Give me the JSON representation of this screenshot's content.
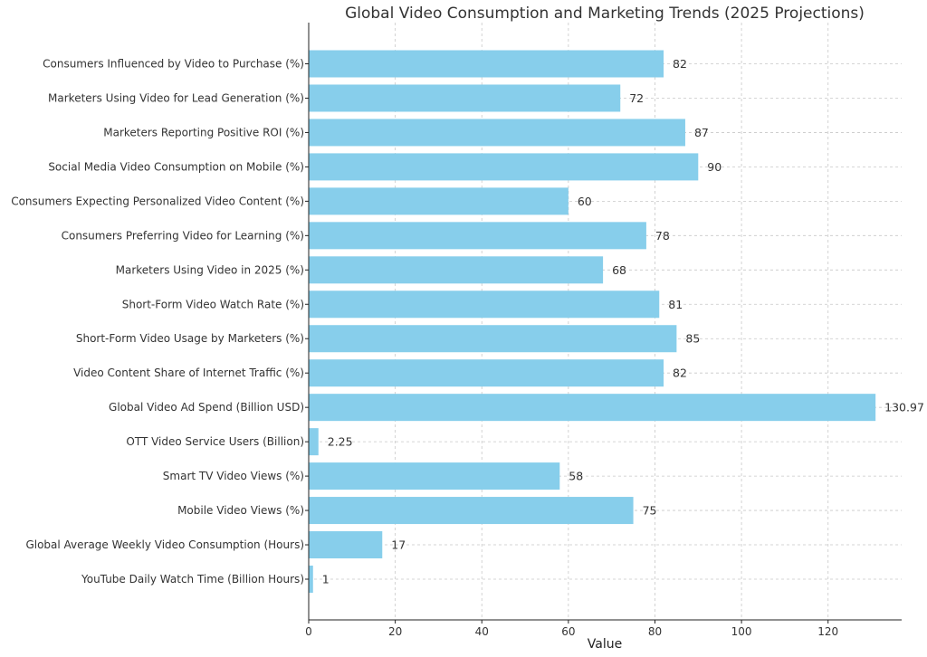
{
  "chart_data": {
    "type": "bar",
    "orientation": "horizontal",
    "title": "Global Video Consumption and Marketing Trends (2025 Projections)",
    "xlabel": "Value",
    "ylabel": "",
    "xlim": [
      0,
      137
    ],
    "xticks": [
      0,
      20,
      40,
      60,
      80,
      100,
      120
    ],
    "grid": true,
    "bar_color": "#87ceeb",
    "categories": [
      "YouTube Daily Watch Time (Billion Hours)",
      "Global Average Weekly Video Consumption (Hours)",
      "Mobile Video Views (%)",
      "Smart TV Video Views (%)",
      "OTT Video Service Users (Billion)",
      "Global Video Ad Spend (Billion USD)",
      "Video Content Share of Internet Traffic (%)",
      "Short-Form Video Usage by Marketers (%)",
      "Short-Form Video Watch Rate (%)",
      "Marketers Using Video in 2025 (%)",
      "Consumers Preferring Video for Learning (%)",
      "Consumers Expecting Personalized Video Content (%)",
      "Social Media Video Consumption on Mobile (%)",
      "Marketers Reporting Positive ROI (%)",
      "Marketers Using Video for Lead Generation (%)",
      "Consumers Influenced by Video to Purchase (%)"
    ],
    "values": [
      1,
      17,
      75,
      58,
      2.25,
      130.97,
      82,
      85,
      81,
      68,
      78,
      60,
      90,
      87,
      72,
      82
    ],
    "value_labels": [
      "1",
      "17",
      "75",
      "58",
      "2.25",
      "130.97",
      "82",
      "85",
      "81",
      "68",
      "78",
      "60",
      "90",
      "87",
      "72",
      "82"
    ]
  }
}
